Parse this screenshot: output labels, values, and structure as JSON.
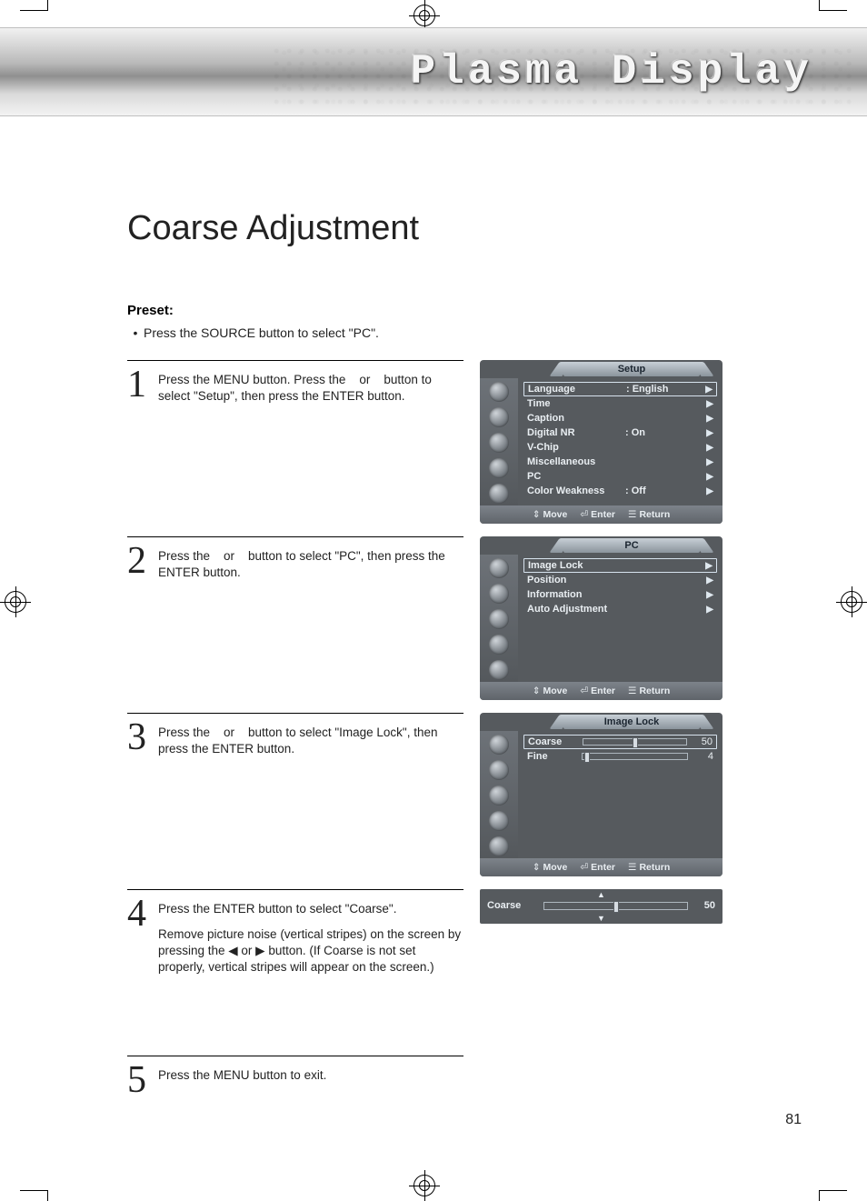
{
  "banner_title": "Plasma Display",
  "page_title": "Coarse Adjustment",
  "preset_label": "Preset:",
  "preset_text": "Press the SOURCE button to select \"PC\".",
  "page_number": "81",
  "colors": {
    "osd_bg": "#565a5e",
    "osd_text": "#e9eef2",
    "osd_sel_border": "#d7e3ee",
    "banner_text": "#f5f5f5",
    "rule": "#000000"
  },
  "steps": {
    "s1": {
      "num": "1",
      "text": "Press the MENU button. Press the    or    button to select \"Setup\", then press the ENTER button."
    },
    "s2": {
      "num": "2",
      "text": "Press the    or    button to select \"PC\", then press the ENTER button."
    },
    "s3": {
      "num": "3",
      "text": "Press the    or    button to select \"Image Lock\", then press the ENTER button."
    },
    "s4": {
      "num": "4",
      "text_a": "Press the ENTER button to select \"Coarse\".",
      "text_b": "Remove picture noise (vertical stripes) on the screen by pressing the ◀ or ▶ button. (If Coarse is not set properly, vertical stripes will appear on the screen.)"
    },
    "s5": {
      "num": "5",
      "text": "Press the MENU button to exit."
    }
  },
  "osd_foot": {
    "move": "Move",
    "enter": "Enter",
    "return": "Return",
    "move_sym": "⇕",
    "enter_sym": "⏎",
    "return_sym": "☰"
  },
  "osd1": {
    "title": "Setup",
    "rows": [
      {
        "label": "Language",
        "value": ":  English",
        "sel": true
      },
      {
        "label": "Time",
        "value": ""
      },
      {
        "label": "Caption",
        "value": ""
      },
      {
        "label": "Digital NR",
        "value": ":  On"
      },
      {
        "label": "V-Chip",
        "value": ""
      },
      {
        "label": "Miscellaneous",
        "value": ""
      },
      {
        "label": "PC",
        "value": ""
      },
      {
        "label": "Color Weakness",
        "value": ":  Off"
      }
    ]
  },
  "osd2": {
    "title": "PC",
    "rows": [
      {
        "label": "Image Lock",
        "value": "",
        "sel": true
      },
      {
        "label": "Position",
        "value": ""
      },
      {
        "label": "Information",
        "value": ""
      },
      {
        "label": "Auto Adjustment",
        "value": ""
      }
    ]
  },
  "osd3": {
    "title": "Image Lock",
    "sliders": [
      {
        "label": "Coarse",
        "value": "50",
        "pos_pct": 50,
        "sel": true
      },
      {
        "label": "Fine",
        "value": "4",
        "pos_pct": 4
      }
    ]
  },
  "osd4": {
    "label": "Coarse",
    "value": "50",
    "pos_pct": 50
  }
}
